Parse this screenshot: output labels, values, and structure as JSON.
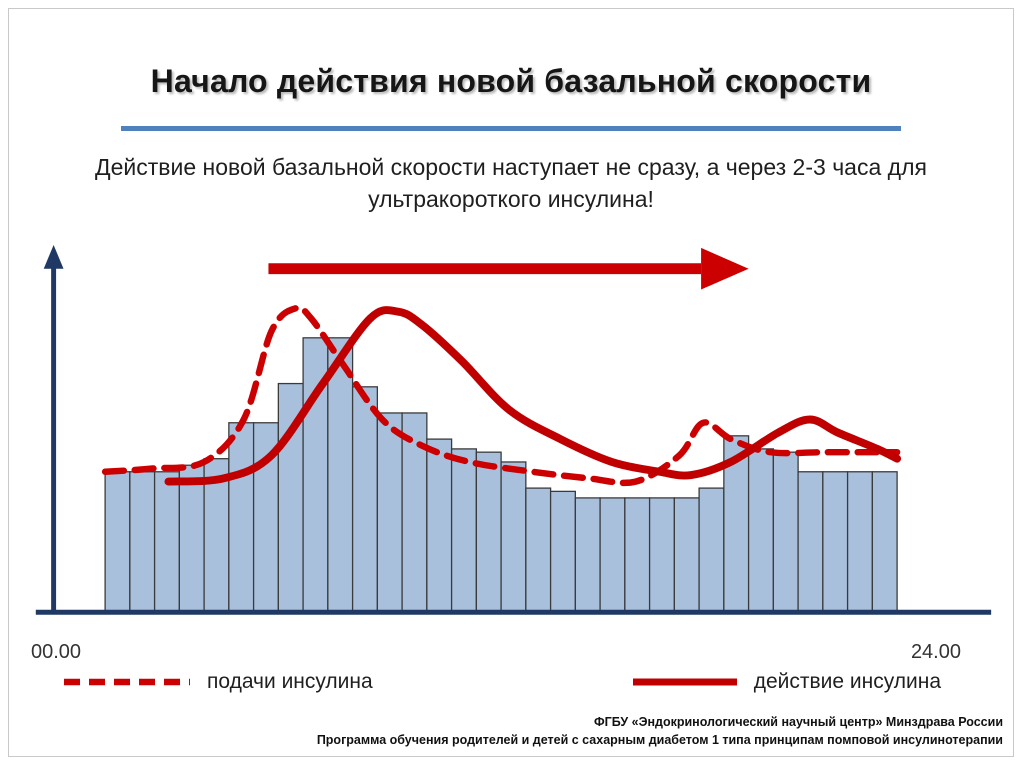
{
  "slide": {
    "title": "Начало действия новой базальной скорости",
    "subtitle": "Действие новой базальной скорости наступает не сразу, а через 2-3 часа для ультракороткого инсулина!",
    "footer_line1": "ФГБУ «Эндокринологический научный центр» Минздрава России",
    "footer_line2": "Программа обучения родителей и детей с сахарным диабетом 1 типа принципам помповой инсулинотерапии",
    "accent_color": "#4f81bd"
  },
  "chart_data": {
    "type": "bar",
    "title": "",
    "xlabel": "",
    "ylabel": "",
    "description": "Hourly basal insulin rate profile over 24 hours with insulin delivery and insulin action curves",
    "x_axis": {
      "start_label": "00.00",
      "end_label": "24.00",
      "range_hours": [
        0,
        24
      ]
    },
    "grid": false,
    "axis_color": "#1f3864",
    "bar_color": "#a9c0dd",
    "bar_border_color": "#3a3a3a",
    "bars_percent": [
      43,
      43,
      43,
      45,
      47,
      58,
      58,
      70,
      84,
      84,
      69,
      61,
      61,
      53,
      50,
      49,
      46,
      38,
      37,
      35,
      35,
      35,
      35,
      35,
      38,
      54,
      50,
      49,
      43,
      43,
      43,
      43
    ],
    "series": [
      {
        "name": "подачи инсулина",
        "style": "dashed",
        "color": "#cc0000",
        "points_percent": [
          [
            0,
            43
          ],
          [
            6,
            44
          ],
          [
            12.5,
            46
          ],
          [
            17.5,
            59
          ],
          [
            21,
            86
          ],
          [
            24,
            93
          ],
          [
            26,
            90
          ],
          [
            30,
            76
          ],
          [
            35,
            59
          ],
          [
            40,
            51
          ],
          [
            46,
            46
          ],
          [
            54,
            43
          ],
          [
            61,
            41
          ],
          [
            67,
            40
          ],
          [
            72.5,
            48
          ],
          [
            75.5,
            58
          ],
          [
            79,
            53
          ],
          [
            84,
            49
          ],
          [
            91,
            49
          ],
          [
            100,
            49
          ]
        ]
      },
      {
        "name": "действие инсулина",
        "style": "solid",
        "color": "#c00000",
        "points_percent": [
          [
            8,
            40
          ],
          [
            15,
            41
          ],
          [
            21,
            48
          ],
          [
            27.5,
            70
          ],
          [
            33.5,
            90
          ],
          [
            37,
            92
          ],
          [
            40,
            88
          ],
          [
            45,
            77
          ],
          [
            51,
            62
          ],
          [
            57.5,
            53
          ],
          [
            64,
            46
          ],
          [
            70,
            43
          ],
          [
            74,
            42
          ],
          [
            79,
            46
          ],
          [
            85,
            55
          ],
          [
            89,
            59
          ],
          [
            92.5,
            55
          ],
          [
            97.5,
            50
          ],
          [
            100,
            47
          ]
        ]
      }
    ],
    "annotations": [
      {
        "type": "arrow",
        "direction": "right",
        "color": "#cc0000"
      }
    ],
    "legend": [
      {
        "label": "подачи инсулина",
        "style": "dashed"
      },
      {
        "label": "действие инсулина",
        "style": "solid"
      }
    ],
    "legend_position": "bottom"
  }
}
